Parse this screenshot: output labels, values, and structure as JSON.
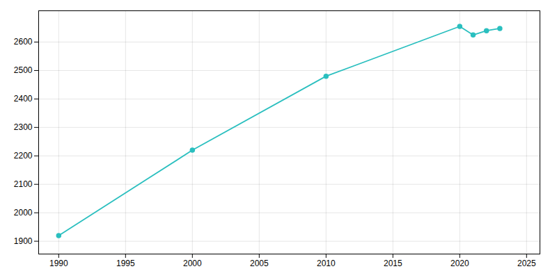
{
  "chart_data": {
    "type": "line",
    "x": [
      1990,
      2000,
      2010,
      2020,
      2021,
      2022,
      2023
    ],
    "values": [
      1920,
      2220,
      2480,
      2655,
      2625,
      2640,
      2648
    ],
    "color": "#2abfbf",
    "marker": "circle",
    "xlim": [
      1988.5,
      2026
    ],
    "ylim": [
      1855,
      2710
    ],
    "xticks": [
      1990,
      1995,
      2000,
      2005,
      2010,
      2015,
      2020,
      2025
    ],
    "yticks": [
      1900,
      2000,
      2100,
      2200,
      2300,
      2400,
      2500,
      2600
    ],
    "grid": true
  }
}
